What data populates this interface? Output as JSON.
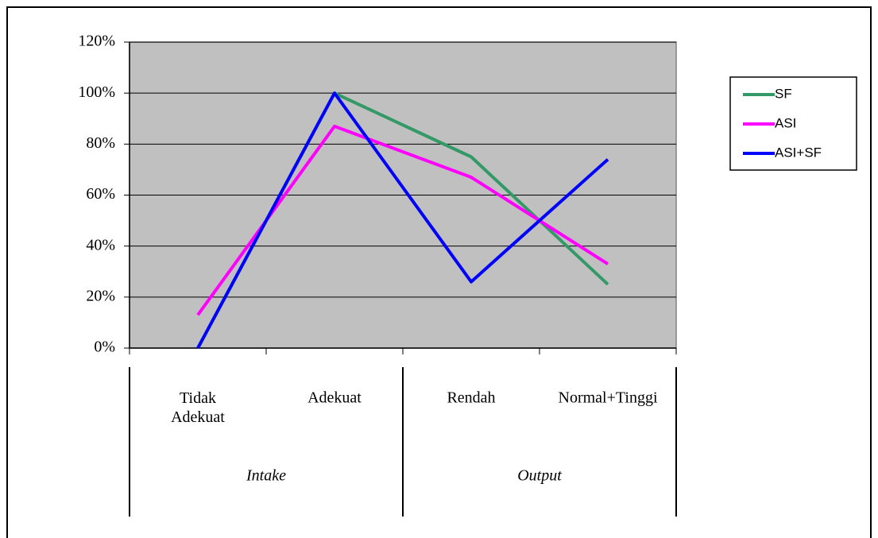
{
  "chart_data": {
    "type": "line",
    "categories": [
      "Tidak Adekuat",
      "Adekuat",
      "Rendah",
      "Normal+Tinggi"
    ],
    "groups": [
      "Intake",
      "Output"
    ],
    "series": [
      {
        "name": "SF",
        "color": "#339966",
        "values": [
          0,
          100,
          75,
          25
        ]
      },
      {
        "name": "ASI",
        "color": "#ff00ff",
        "values": [
          13,
          87,
          67,
          33
        ]
      },
      {
        "name": "ASI+SF",
        "color": "#0000ff",
        "values": [
          0,
          100,
          26,
          74
        ]
      }
    ],
    "ylim": [
      0,
      120
    ],
    "yticks": [
      {
        "value": 0,
        "label": "0%"
      },
      {
        "value": 20,
        "label": "20%"
      },
      {
        "value": 40,
        "label": "40%"
      },
      {
        "value": 60,
        "label": "60%"
      },
      {
        "value": 80,
        "label": "80%"
      },
      {
        "value": 100,
        "label": "100%"
      },
      {
        "value": 120,
        "label": "120%"
      }
    ],
    "grid": true,
    "legend": "right",
    "plot_background": "#c0c0c0"
  }
}
